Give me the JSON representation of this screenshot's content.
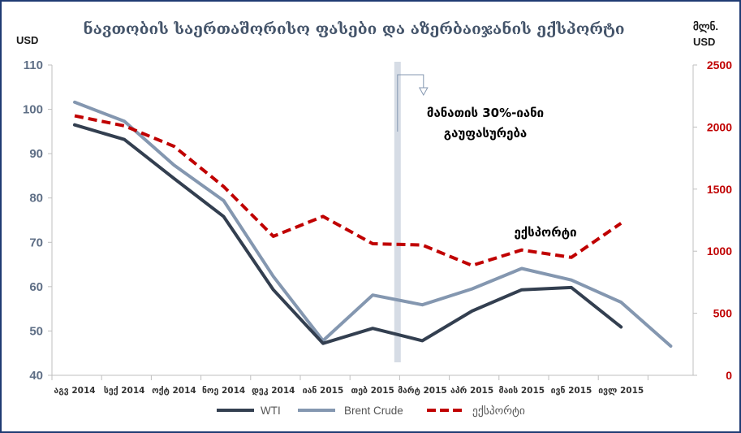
{
  "chart_data": {
    "type": "line",
    "title": "ნავთობის საერთაშორისო ფასები და აზერბაიჯანის ექსპორტი",
    "y_left_unit": "USD",
    "y_right_unit_line1": "მლნ.",
    "y_right_unit_line2": "USD",
    "ylim_left": [
      40,
      110
    ],
    "ylim_right": [
      0,
      2500
    ],
    "yticks_left": [
      "40",
      "50",
      "60",
      "70",
      "80",
      "90",
      "100",
      "110"
    ],
    "yticks_right": [
      "0",
      "500",
      "1000",
      "1500",
      "2000",
      "2500"
    ],
    "categories": [
      "აგვ 2014",
      "სექ 2014",
      "ოქტ 2014",
      "ნოე 2014",
      "დეკ 2014",
      "იან 2015",
      "თებ 2015",
      "მარტ 2015",
      "აპრ 2015",
      "მაის 2015",
      "ივნ 2015",
      "ივლ 2015"
    ],
    "series": [
      {
        "name": "WTI",
        "axis": "left",
        "color": "#333f50",
        "dash": false,
        "x": [
          0,
          1,
          2,
          3,
          4,
          5,
          6,
          7,
          8,
          9,
          10,
          11
        ],
        "values": [
          96.5,
          93.2,
          84.4,
          75.8,
          59.3,
          47.2,
          50.6,
          47.8,
          54.5,
          59.3,
          59.8,
          50.9
        ]
      },
      {
        "name": "Brent Crude",
        "axis": "left",
        "color": "#8497b0",
        "dash": false,
        "x": [
          0,
          1,
          2,
          3,
          4,
          5,
          6,
          7,
          8,
          9,
          10,
          11,
          12
        ],
        "values": [
          101.6,
          97.3,
          87.4,
          79.4,
          62.3,
          47.8,
          58.1,
          55.9,
          59.5,
          64.1,
          61.5,
          56.5,
          46.6
        ]
      },
      {
        "name": "ექსპორტი",
        "axis": "right",
        "color": "#c00000",
        "dash": true,
        "x": [
          0,
          1,
          2,
          3,
          4,
          5,
          6,
          7,
          8,
          9,
          10,
          11
        ],
        "values": [
          2090,
          2010,
          1845,
          1520,
          1120,
          1280,
          1060,
          1050,
          885,
          1010,
          950,
          1225
        ]
      }
    ],
    "event_band_x": 6.5,
    "annotations": {
      "event_line1": "მანათის 30%-იანი",
      "event_line2": "გაუფასურება",
      "export_label": "ექსპორტი"
    },
    "legend": {
      "position": "bottom"
    }
  }
}
